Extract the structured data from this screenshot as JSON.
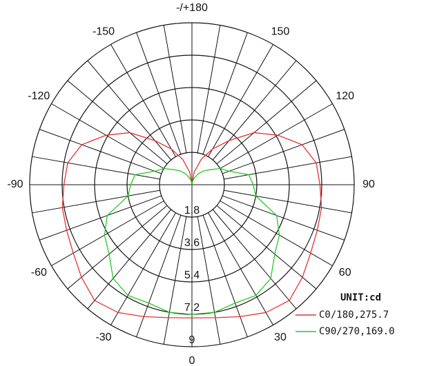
{
  "chart_data": {
    "type": "polar",
    "unit_label": "UNIT:cd",
    "x": [
      -180,
      -170,
      -160,
      -150,
      -140,
      -130,
      -120,
      -110,
      -100,
      -90,
      -80,
      -70,
      -60,
      -50,
      -40,
      -30,
      -20,
      -10,
      0,
      10,
      20,
      30,
      40,
      50,
      60,
      70,
      80,
      90,
      100,
      110,
      120,
      130,
      140,
      150,
      160,
      170,
      180
    ],
    "series": [
      {
        "name": "C0/180,275.7",
        "color": "#e8312f",
        "values": [
          0,
          0.7,
          1.5,
          2.3,
          3.2,
          4.5,
          5.5,
          6.5,
          7.0,
          7.1,
          7.3,
          7.4,
          7.6,
          8.0,
          8.4,
          8.2,
          7.8,
          7.5,
          7.4,
          7.5,
          7.8,
          8.2,
          8.4,
          8.0,
          7.6,
          7.4,
          7.3,
          7.1,
          7.0,
          6.5,
          5.5,
          4.5,
          3.2,
          2.3,
          1.5,
          0.7,
          0
        ]
      },
      {
        "name": "C90/270,169.0",
        "color": "#22cc22",
        "values": [
          0,
          0.2,
          0.4,
          0.7,
          1.0,
          1.3,
          1.8,
          2.2,
          3.2,
          3.4,
          3.6,
          5.0,
          5.6,
          6.0,
          6.8,
          7.1,
          7.0,
          7.2,
          7.2,
          7.2,
          7.0,
          7.1,
          6.8,
          6.0,
          5.6,
          5.0,
          3.6,
          3.4,
          3.2,
          2.2,
          1.8,
          1.3,
          1.0,
          0.7,
          0.4,
          0.2,
          0
        ]
      }
    ],
    "rlim": [
      0,
      9
    ],
    "rticks": [
      1.8,
      3.6,
      5.4,
      7.2,
      9
    ],
    "xticks": [
      0,
      30,
      60,
      90,
      120,
      150,
      {
        "value": 180,
        "label": "-/+180"
      },
      -150,
      -120,
      -90,
      -60,
      -30
    ],
    "grid_step": 10,
    "grid": true,
    "legend": "lower right"
  }
}
